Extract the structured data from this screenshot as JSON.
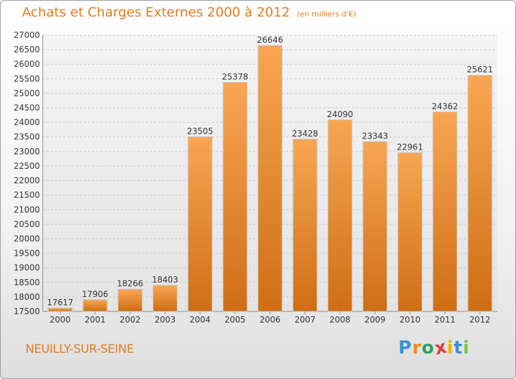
{
  "header": {
    "title": "Achats et Charges Externes 2000 à 2012",
    "subtitle": "(en milliers d'€)"
  },
  "footer": {
    "location": "NEUILLY-SUR-SEINE",
    "logo_letters": [
      {
        "char": "P",
        "color": "#3a8fd6"
      },
      {
        "char": "r",
        "color": "#f08a1c"
      },
      {
        "char": "o",
        "color": "#2ca25f"
      },
      {
        "char": "x",
        "color": "#e23b3b"
      },
      {
        "char": "i",
        "color": "#f0b400"
      },
      {
        "char": "t",
        "color": "#3a8fd6"
      },
      {
        "char": "i",
        "color": "#7cc242"
      }
    ]
  },
  "colors": {
    "accent": "#e07d1f",
    "bar_top": "#f8a654",
    "bar_bottom": "#cf6e14"
  },
  "chart_data": {
    "type": "bar",
    "categories": [
      "2000",
      "2001",
      "2002",
      "2003",
      "2004",
      "2005",
      "2006",
      "2007",
      "2008",
      "2009",
      "2010",
      "2011",
      "2012"
    ],
    "values": [
      17617,
      17906,
      18266,
      18403,
      23505,
      25378,
      26646,
      23428,
      24090,
      23343,
      22961,
      24362,
      25621
    ],
    "ylim": [
      17500,
      27000
    ],
    "yticks": [
      17500,
      18000,
      18500,
      19000,
      19500,
      20000,
      20500,
      21000,
      21500,
      22000,
      22500,
      23000,
      23500,
      24000,
      24500,
      25000,
      25500,
      26000,
      26500,
      27000
    ],
    "grid": true,
    "data_labels": true
  }
}
